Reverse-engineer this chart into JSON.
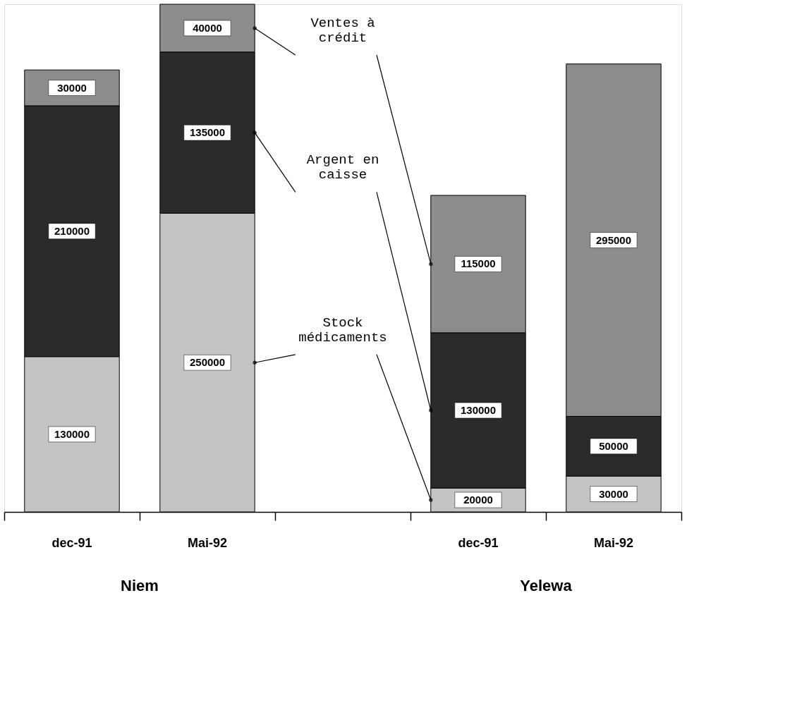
{
  "chart_data": {
    "type": "bar",
    "stacked": true,
    "categories": [
      "dec-91",
      "Mai-92",
      null,
      "dec-91",
      "Mai-92"
    ],
    "series": [
      {
        "name": "Stock médicaments",
        "color": "#c4c4c4",
        "values": [
          130000,
          250000,
          null,
          20000,
          30000
        ]
      },
      {
        "name": "Argent en caisse",
        "color": "#2b2b2b",
        "values": [
          210000,
          135000,
          null,
          130000,
          50000
        ]
      },
      {
        "name": "Ventes à crédit",
        "color": "#8c8c8c",
        "values": [
          30000,
          40000,
          null,
          115000,
          295000
        ]
      }
    ],
    "data_labels": true,
    "legend": false,
    "grid": false,
    "annotations": [
      "Niem",
      "Yelewa"
    ]
  }
}
